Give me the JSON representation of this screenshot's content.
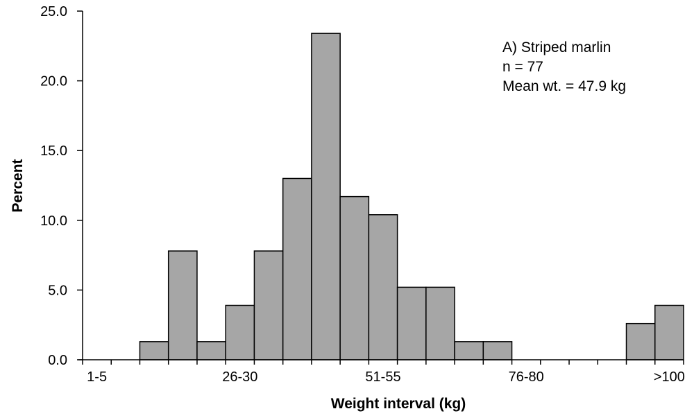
{
  "chart_data": {
    "type": "bar",
    "xlabel": "Weight interval (kg)",
    "ylabel": "Percent",
    "ylim": [
      0,
      25
    ],
    "yticks": [
      "0.0",
      "5.0",
      "10.0",
      "15.0",
      "20.0",
      "25.0"
    ],
    "categories": [
      "1-5",
      "6-10",
      "11-15",
      "16-20",
      "21-25",
      "26-30",
      "31-35",
      "36-40",
      "41-45",
      "46-50",
      "51-55",
      "56-60",
      "61-65",
      "66-70",
      "71-75",
      "76-80",
      "81-85",
      "86-90",
      "91-95",
      "96-100",
      ">100"
    ],
    "xtick_labels_shown": [
      "1-5",
      "26-30",
      "51-55",
      "76-80",
      ">100"
    ],
    "values": [
      0,
      0,
      1.3,
      7.8,
      1.3,
      3.9,
      7.8,
      13.0,
      23.4,
      11.7,
      10.4,
      5.2,
      5.2,
      1.3,
      1.3,
      0,
      0,
      0,
      0,
      2.6,
      3.9
    ],
    "bar_color": "#a6a6a6",
    "grid": false,
    "annotation": [
      "A) Striped marlin",
      "n = 77",
      "Mean wt. = 47.9 kg"
    ]
  }
}
